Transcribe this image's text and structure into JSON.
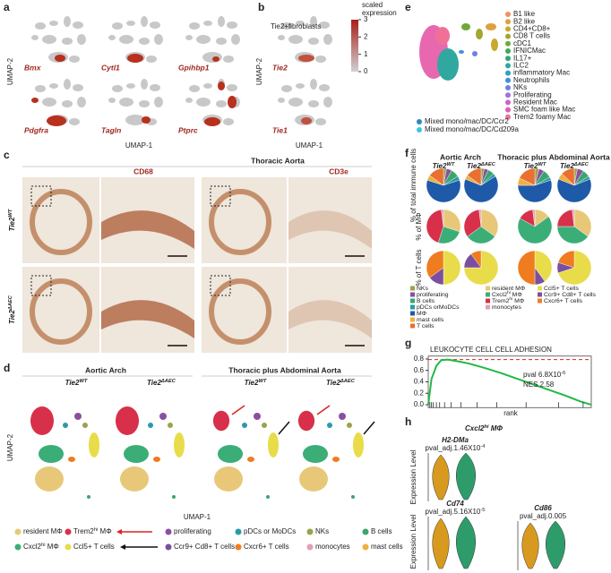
{
  "a": {
    "label": "a",
    "genes": [
      "Bmx",
      "Cytl1",
      "Gpihbp1",
      "Pdgfra",
      "Tagln",
      "Ptprc"
    ],
    "y_axis": "UMAP-2",
    "x_axis": "UMAP-1"
  },
  "b": {
    "label": "b",
    "annotation": "Tie2+fibroblasts",
    "genes": [
      "Tie2",
      "Tie1"
    ],
    "y_axis": "UMAP-2",
    "x_axis": "UMAP-1",
    "colorbar": {
      "title": [
        "scaled",
        "expression"
      ],
      "ticks": [
        3,
        2,
        1,
        0
      ],
      "range": [
        0,
        3
      ]
    }
  },
  "c": {
    "label": "c",
    "title": "Thoracic Aorta",
    "stains": [
      "CD68",
      "CD3e"
    ],
    "rows": [
      [
        "Tie2",
        {
          "sup": "WT"
        }
      ],
      [
        "Tie2",
        {
          "sup": "ΔAEC"
        }
      ]
    ]
  },
  "d": {
    "label": "d",
    "groups": [
      "Aortic Arch",
      "Thoracic plus Abdominal Aorta"
    ],
    "conditions": [
      [
        "Tie2",
        {
          "sup": "WT"
        }
      ],
      [
        "Tie2",
        {
          "sup": "ΔAEC"
        }
      ],
      [
        "Tie2",
        {
          "sup": "WT"
        }
      ],
      [
        "Tie2",
        {
          "sup": "ΔAEC"
        }
      ]
    ],
    "y_axis": "UMAP-2",
    "x_axis": "UMAP-1",
    "legend": [
      {
        "name": "resident MΦ",
        "color": "#e8c878"
      },
      {
        "name": [
          "Trem2",
          {
            "sup": "hi"
          },
          " MΦ"
        ],
        "color": "#d8304a"
      },
      {
        "name": "proliferating",
        "color": "#8a4fa0"
      },
      {
        "name": "pDCs or MoDCs",
        "color": "#2b9aa8"
      },
      {
        "name": "NKs",
        "color": "#9aa34a"
      },
      {
        "name": "B cells",
        "color": "#3aa66c"
      },
      {
        "name": [
          "Cxcl2",
          {
            "sup": "hi"
          },
          " MΦ"
        ],
        "color": "#3bae78"
      },
      {
        "name": "Ccl5+ T cells",
        "color": "#e8dc4a"
      },
      {
        "name": "Ccr9+ Cd8+ T cells",
        "color": "#7b4fa0"
      },
      {
        "name": "Cxcr6+ T cells",
        "color": "#f07c20"
      },
      {
        "name": "monocytes",
        "color": "#e0a0b8"
      },
      {
        "name": "mast cells",
        "color": "#f0b040"
      }
    ]
  },
  "e": {
    "label": "e",
    "legend": [
      {
        "name": "B1 like",
        "color": "#f0906a"
      },
      {
        "name": "B2 like",
        "color": "#e0a040"
      },
      {
        "name": "CD4+CD8+",
        "color": "#c8a830"
      },
      {
        "name": "CD8 T cells",
        "color": "#a0a830"
      },
      {
        "name": "cDC1",
        "color": "#70a838"
      },
      {
        "name": "IFNICMac",
        "color": "#40a858"
      },
      {
        "name": "IL17+",
        "color": "#30a878"
      },
      {
        "name": "ILC2",
        "color": "#30a8a0"
      },
      {
        "name": "inflammatory Mac",
        "color": "#30a0c0"
      },
      {
        "name": "Neutrophils",
        "color": "#4090d8"
      },
      {
        "name": "NKs",
        "color": "#7080e0"
      },
      {
        "name": "Proliferating",
        "color": "#a070e0"
      },
      {
        "name": "Resident Mac",
        "color": "#d060d0"
      },
      {
        "name": "SMC foam like Mac",
        "color": "#e060b0"
      },
      {
        "name": "Trem2 foamy Mac",
        "color": "#f07098"
      }
    ],
    "mixed": [
      {
        "name": "Mixed mono/mac/DC/Ccr2",
        "color": "#2b8ab8"
      },
      {
        "name": "Mixed mono/mac/DC/Cd209a",
        "color": "#3ac8e0"
      }
    ]
  },
  "f": {
    "label": "f",
    "groups": [
      "Aortic Arch",
      "Thoracic plus Abdominal Aorta"
    ],
    "conditions": [
      [
        "Tie2",
        {
          "sup": "WT"
        }
      ],
      [
        "Tie2",
        {
          "sup": "ΔAEC"
        }
      ],
      [
        "Tie2",
        {
          "sup": "WT"
        }
      ],
      [
        "Tie2",
        {
          "sup": "ΔAEC"
        }
      ]
    ],
    "chart": {
      "type": "pie",
      "rows": [
        {
          "label": "% of total immune cells",
          "series": [
            {
              "name": "NKs",
              "color": "#9aa34a",
              "values": [
                3,
                3,
                4,
                3
              ]
            },
            {
              "name": "proliferating",
              "color": "#8a4fa0",
              "values": [
                5,
                4,
                5,
                6
              ]
            },
            {
              "name": "B cells",
              "color": "#3aa66c",
              "values": [
                8,
                6,
                8,
                7
              ]
            },
            {
              "name": "pDCs orMoDCs",
              "color": "#2b9aa8",
              "values": [
                4,
                3,
                3,
                3
              ]
            },
            {
              "name": "MΦ",
              "color": "#1e5aa8",
              "values": [
                60,
                65,
                55,
                62
              ]
            },
            {
              "name": "mast cells",
              "color": "#f0b040",
              "values": [
                5,
                4,
                7,
                6
              ]
            },
            {
              "name": "T cells",
              "color": "#e87030",
              "values": [
                15,
                15,
                18,
                13
              ]
            }
          ]
        },
        {
          "label": "% of MΦ",
          "series": [
            {
              "name": "resident MΦ",
              "color": "#e8c878",
              "values": [
                30,
                35,
                15,
                35
              ]
            },
            {
              "name": [
                "Cxcl2",
                {
                  "sup": "hi"
                },
                " MΦ"
              ],
              "color": "#3bae78",
              "values": [
                25,
                30,
                68,
                40
              ]
            },
            {
              "name": [
                "Trem2",
                {
                  "sup": "hi"
                },
                " MΦ"
              ],
              "color": "#d8304a",
              "values": [
                43,
                33,
                15,
                23
              ]
            },
            {
              "name": "monocytes",
              "color": "#e0a0b8",
              "values": [
                2,
                2,
                2,
                2
              ]
            }
          ]
        },
        {
          "label": "% of T cells",
          "series": [
            {
              "name": "Ccl5+ T cells",
              "color": "#e8dc4a",
              "values": [
                50,
                75,
                40,
                70
              ]
            },
            {
              "name": "Ccr9+ Cd8+ T cells",
              "color": "#7b4fa0",
              "values": [
                15,
                15,
                10,
                10
              ]
            },
            {
              "name": "Cxcr6+ T cells",
              "color": "#f07c20",
              "values": [
                35,
                10,
                50,
                20
              ]
            }
          ]
        }
      ]
    }
  },
  "g": {
    "label": "g",
    "title": "LEUKOCYTE CELL CELL ADHESION",
    "stats": [
      [
        "pval 6.8X10",
        {
          "sup": "-6"
        }
      ],
      "NES 2.58"
    ],
    "x_axis": "rank",
    "chart": {
      "type": "line",
      "color": "#22b844",
      "x": [
        0,
        0.02,
        0.05,
        0.08,
        0.12,
        0.18,
        0.25,
        0.35,
        0.45,
        0.55,
        0.65,
        0.75,
        0.85,
        0.93,
        1
      ],
      "values": [
        0,
        0.45,
        0.68,
        0.78,
        0.79,
        0.76,
        0.72,
        0.64,
        0.55,
        0.45,
        0.35,
        0.25,
        0.15,
        0.06,
        0
      ],
      "xlim": [
        0,
        1
      ],
      "ylim": [
        -0.05,
        0.85
      ],
      "yticks": [
        0.8,
        0.6,
        0.4,
        0.2,
        {
          "value": 0,
          "label": "0.0"
        }
      ],
      "es_max": 0.79
    }
  },
  "h": {
    "label": "h",
    "title": [
      "Cxcl2",
      {
        "sup": "hi"
      },
      " MΦ"
    ],
    "y_axis": "Expression Level",
    "colors": [
      "#d89a1e",
      "#2e9c6a"
    ],
    "genes": [
      {
        "gene": "H2-DMa",
        "pval": [
          "pval_adj.1.46X10",
          {
            "sup": "-4"
          }
        ]
      },
      {
        "gene": "Cd74",
        "pval": [
          "pval_adj.5.16X10",
          {
            "sup": "-5"
          }
        ]
      },
      {
        "gene": "Cd86",
        "pval": "pval_adj.0.005"
      }
    ]
  }
}
